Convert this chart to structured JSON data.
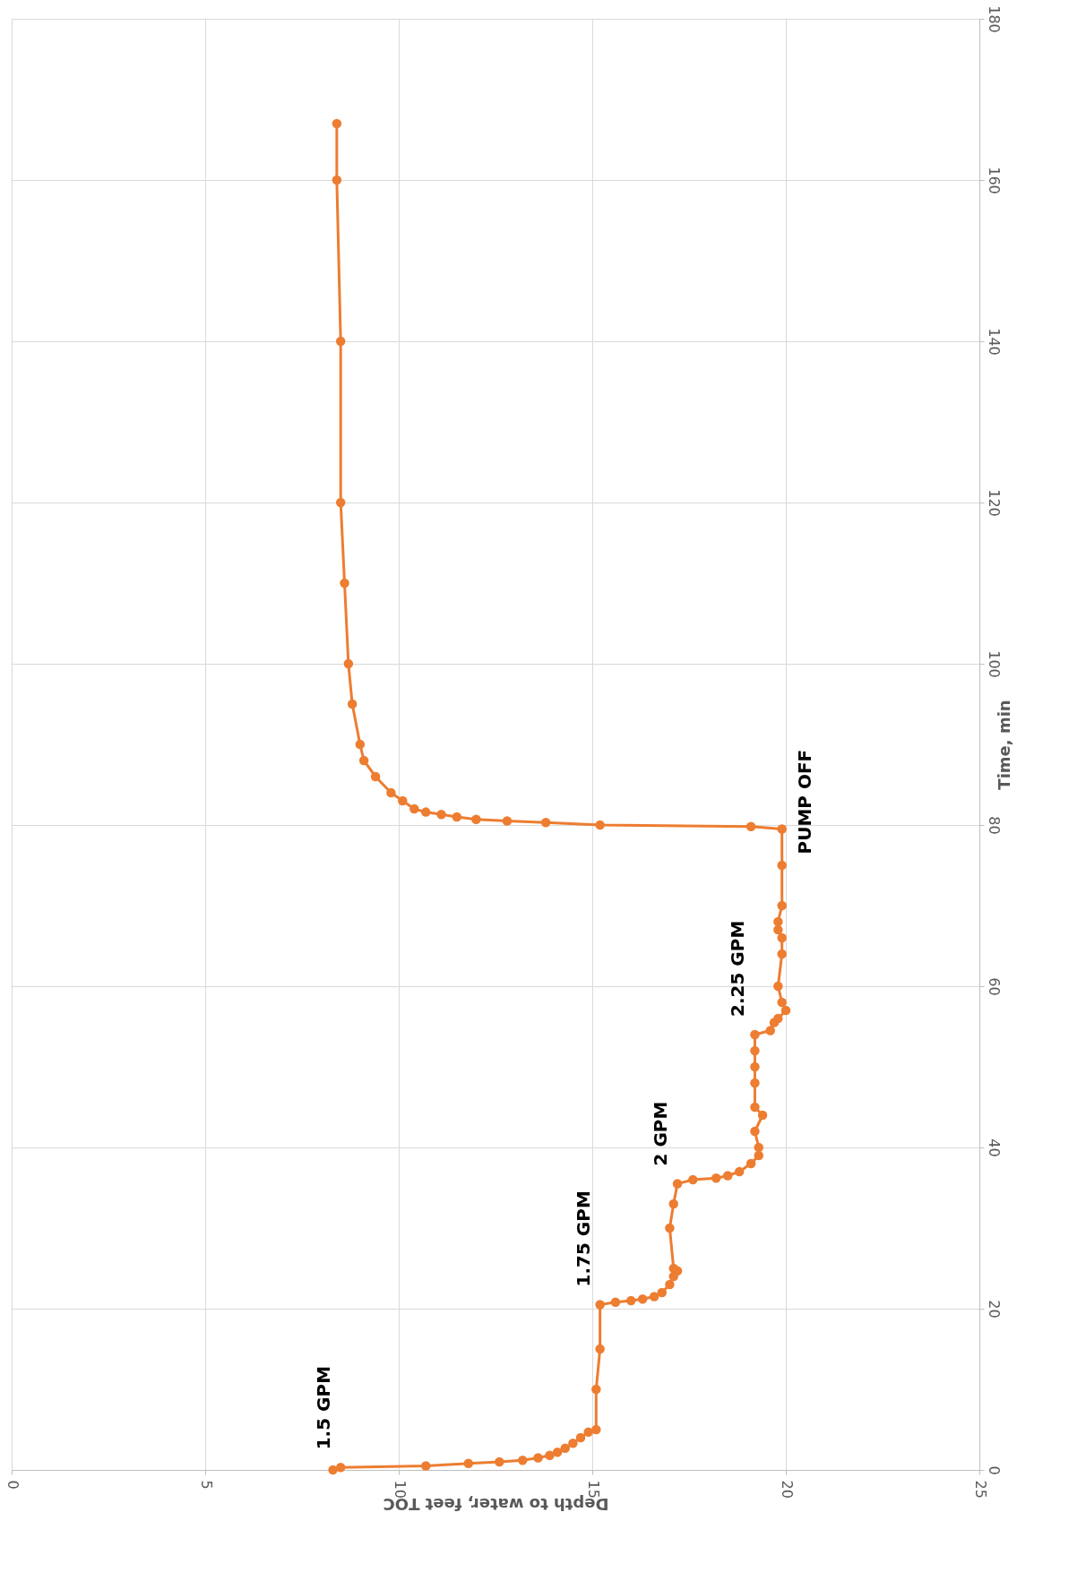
{
  "chart_data": {
    "type": "line",
    "xlabel": "Depth to water, feet TOC",
    "ylabel": "Time, min",
    "series": [
      {
        "color": "#ed7d31",
        "x": [
          8.3,
          8.5,
          10.7,
          11.8,
          12.6,
          13.2,
          13.6,
          13.9,
          14.1,
          14.3,
          14.5,
          14.7,
          14.9,
          15.1,
          15.1,
          15.2,
          15.2,
          15.6,
          16.0,
          16.3,
          16.6,
          16.8,
          17.0,
          17.1,
          17.2,
          17.1,
          17.0,
          17.1,
          17.2,
          17.6,
          18.2,
          18.5,
          18.8,
          19.1,
          19.3,
          19.3,
          19.2,
          19.4,
          19.2,
          19.2,
          19.2,
          19.2,
          19.2,
          19.6,
          19.7,
          19.8,
          20.0,
          19.9,
          19.8,
          19.9,
          19.9,
          19.8,
          19.8,
          19.9,
          19.9,
          19.9,
          19.1,
          15.2,
          13.8,
          12.8,
          12.0,
          11.5,
          11.1,
          10.7,
          10.4,
          10.1,
          9.8,
          9.4,
          9.1,
          9.0,
          8.8,
          8.7,
          8.6,
          8.5,
          8.5,
          8.4,
          8.4
        ],
        "values": [
          0,
          0.3,
          0.5,
          0.8,
          1,
          1.2,
          1.5,
          1.8,
          2.2,
          2.7,
          3.3,
          4,
          4.7,
          5,
          10,
          15,
          20.5,
          20.8,
          21,
          21.2,
          21.5,
          22,
          23,
          24,
          24.7,
          25,
          30,
          33,
          35.5,
          36,
          36.2,
          36.5,
          37,
          38,
          39,
          40,
          42,
          44,
          45,
          48,
          50,
          52,
          54,
          54.5,
          55.5,
          56,
          57,
          58,
          60,
          64,
          66,
          67,
          68,
          70,
          75,
          79.5,
          79.8,
          80,
          80.3,
          80.5,
          80.7,
          81,
          81.3,
          81.6,
          82,
          83,
          84,
          86,
          88,
          90,
          95,
          100,
          110,
          120,
          140,
          160,
          167
        ]
      }
    ],
    "marker": "circle",
    "line_style": "solid",
    "grid": true,
    "xlim": [
      0,
      25
    ],
    "xticks": [
      0,
      5,
      10,
      15,
      20,
      25
    ],
    "ylim": [
      0,
      180
    ],
    "yticks": [
      0,
      20,
      40,
      60,
      80,
      100,
      120,
      140,
      160,
      180
    ],
    "annotations": [
      {
        "text": "1.5 GPM",
        "x": 8.5,
        "y": 0.3
      },
      {
        "text": "1.75 GPM",
        "x": 15.2,
        "y": 20.5
      },
      {
        "text": "2 GPM",
        "x": 17.2,
        "y": 35.5
      },
      {
        "text": "2.25 GPM",
        "x": 19.2,
        "y": 54
      },
      {
        "text": "PUMP OFF",
        "x": 19.9,
        "y": 79.5
      }
    ]
  }
}
